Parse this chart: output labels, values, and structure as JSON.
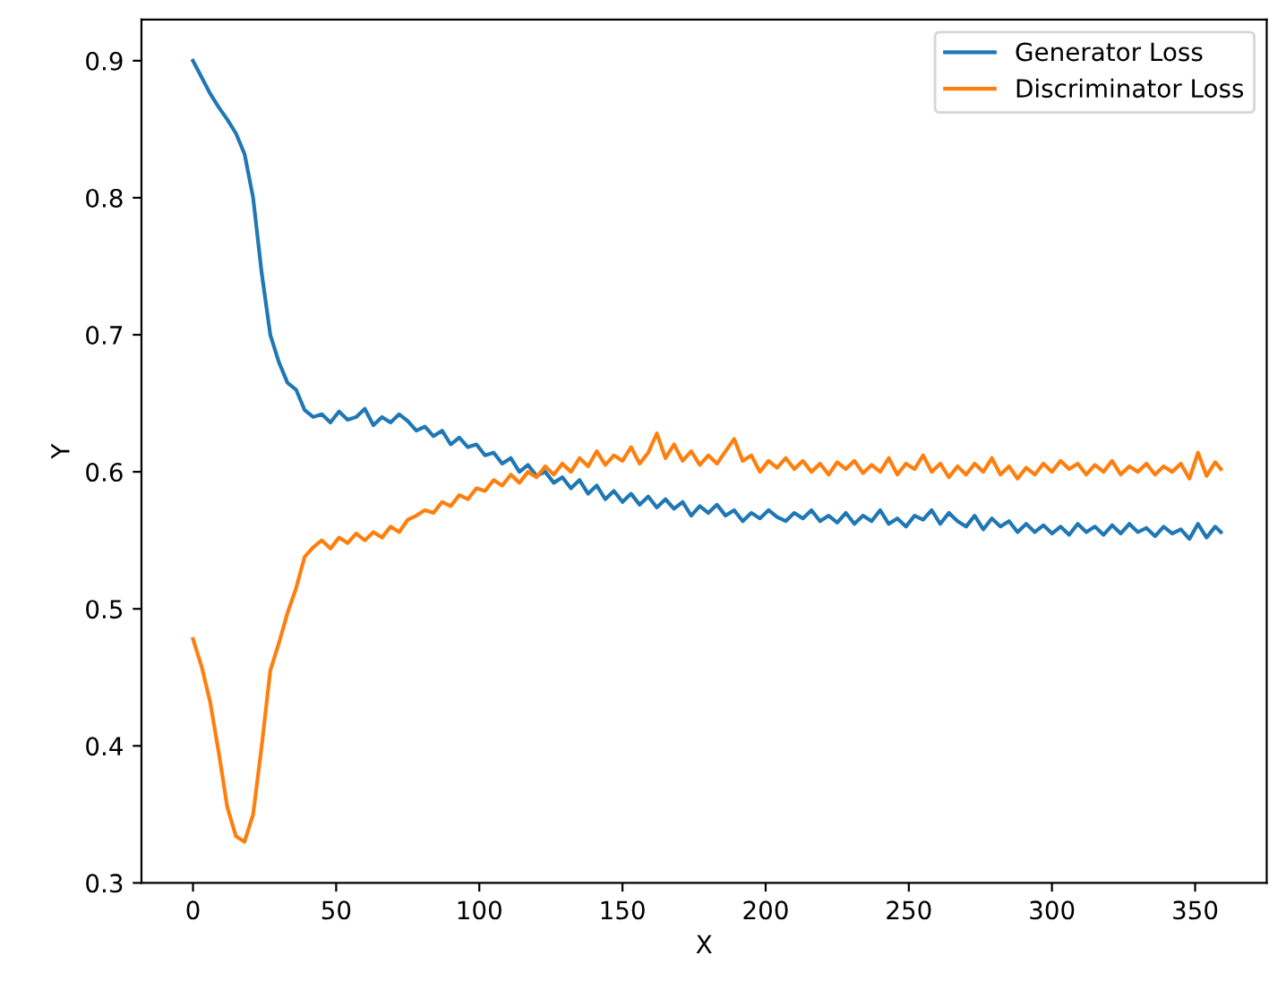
{
  "chart_data": {
    "type": "line",
    "xlabel": "X",
    "ylabel": "Y",
    "x": [
      0,
      3,
      6,
      9,
      12,
      15,
      18,
      21,
      24,
      27,
      30,
      33,
      36,
      39,
      42,
      45,
      48,
      51,
      54,
      57,
      60,
      63,
      66,
      69,
      72,
      75,
      78,
      81,
      84,
      87,
      90,
      93,
      96,
      99,
      102,
      105,
      108,
      111,
      114,
      117,
      120,
      123,
      126,
      129,
      132,
      135,
      138,
      141,
      144,
      147,
      150,
      153,
      156,
      159,
      162,
      165,
      168,
      171,
      174,
      177,
      180,
      183,
      186,
      189,
      192,
      195,
      198,
      201,
      204,
      207,
      210,
      213,
      216,
      219,
      222,
      225,
      228,
      231,
      234,
      237,
      240,
      243,
      246,
      249,
      252,
      255,
      258,
      261,
      264,
      267,
      270,
      273,
      276,
      279,
      282,
      285,
      288,
      291,
      294,
      297,
      300,
      303,
      306,
      309,
      312,
      315,
      318,
      321,
      324,
      327,
      330,
      333,
      336,
      339,
      342,
      345,
      348,
      351,
      354,
      357,
      359
    ],
    "series": [
      {
        "name": "Generator Loss",
        "color": "#1f77b4",
        "values": [
          0.9,
          0.888,
          0.876,
          0.866,
          0.857,
          0.847,
          0.832,
          0.8,
          0.745,
          0.7,
          0.68,
          0.665,
          0.66,
          0.645,
          0.64,
          0.642,
          0.636,
          0.644,
          0.638,
          0.64,
          0.646,
          0.634,
          0.64,
          0.636,
          0.642,
          0.637,
          0.63,
          0.633,
          0.626,
          0.63,
          0.62,
          0.625,
          0.618,
          0.62,
          0.612,
          0.614,
          0.606,
          0.61,
          0.6,
          0.605,
          0.597,
          0.6,
          0.592,
          0.596,
          0.588,
          0.594,
          0.584,
          0.59,
          0.58,
          0.586,
          0.578,
          0.584,
          0.576,
          0.582,
          0.574,
          0.58,
          0.573,
          0.578,
          0.568,
          0.575,
          0.57,
          0.576,
          0.568,
          0.572,
          0.564,
          0.57,
          0.566,
          0.572,
          0.567,
          0.564,
          0.57,
          0.566,
          0.572,
          0.564,
          0.568,
          0.563,
          0.57,
          0.562,
          0.568,
          0.564,
          0.572,
          0.562,
          0.566,
          0.56,
          0.568,
          0.565,
          0.572,
          0.562,
          0.57,
          0.564,
          0.56,
          0.568,
          0.558,
          0.566,
          0.56,
          0.564,
          0.556,
          0.562,
          0.556,
          0.561,
          0.555,
          0.56,
          0.554,
          0.562,
          0.556,
          0.56,
          0.554,
          0.561,
          0.555,
          0.562,
          0.556,
          0.559,
          0.553,
          0.56,
          0.555,
          0.558,
          0.551,
          0.562,
          0.552,
          0.56,
          0.556
        ]
      },
      {
        "name": "Discriminator Loss",
        "color": "#ff7f0e",
        "values": [
          0.478,
          0.458,
          0.432,
          0.395,
          0.355,
          0.334,
          0.33,
          0.35,
          0.4,
          0.455,
          0.475,
          0.497,
          0.515,
          0.538,
          0.545,
          0.55,
          0.544,
          0.552,
          0.548,
          0.555,
          0.55,
          0.556,
          0.552,
          0.56,
          0.556,
          0.565,
          0.568,
          0.572,
          0.57,
          0.578,
          0.575,
          0.583,
          0.58,
          0.588,
          0.586,
          0.594,
          0.59,
          0.598,
          0.592,
          0.6,
          0.596,
          0.604,
          0.598,
          0.606,
          0.6,
          0.61,
          0.604,
          0.615,
          0.605,
          0.612,
          0.608,
          0.618,
          0.606,
          0.614,
          0.628,
          0.61,
          0.62,
          0.608,
          0.615,
          0.605,
          0.612,
          0.606,
          0.615,
          0.624,
          0.608,
          0.612,
          0.6,
          0.608,
          0.603,
          0.61,
          0.602,
          0.608,
          0.6,
          0.606,
          0.598,
          0.607,
          0.602,
          0.608,
          0.599,
          0.605,
          0.6,
          0.61,
          0.598,
          0.606,
          0.602,
          0.612,
          0.6,
          0.606,
          0.596,
          0.604,
          0.598,
          0.606,
          0.6,
          0.61,
          0.598,
          0.604,
          0.595,
          0.603,
          0.598,
          0.606,
          0.6,
          0.608,
          0.602,
          0.606,
          0.598,
          0.605,
          0.6,
          0.608,
          0.598,
          0.604,
          0.6,
          0.606,
          0.598,
          0.604,
          0.6,
          0.606,
          0.595,
          0.614,
          0.597,
          0.607,
          0.602
        ]
      }
    ],
    "xlim": [
      -18,
      375
    ],
    "xticks": [
      0,
      50,
      100,
      150,
      200,
      250,
      300,
      350
    ],
    "ylim": [
      0.3,
      0.93
    ],
    "yticks": [
      0.3,
      0.4,
      0.5,
      0.6,
      0.7,
      0.8,
      0.9
    ],
    "legend": "top right",
    "grid": false
  }
}
